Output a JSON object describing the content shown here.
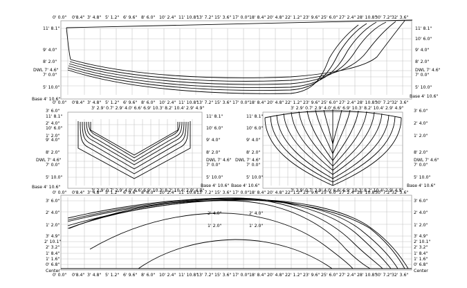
{
  "profile": {
    "top_ticks": [
      "0' 0.0\"",
      "0'8.4\"",
      "3' 4.8\"",
      "5' 1.2\"",
      "6' 9.6\"",
      "8' 6.0\"",
      "10' 2.4\"",
      "11' 10.8\"",
      "13' 7.2\"",
      "15' 3.6\"",
      "17' 0.0\"",
      "18' 8.4\"",
      "20' 4.8\"",
      "22' 1.2\"",
      "23' 9.6\"",
      "25' 6.0\"",
      "27' 2.4\"",
      "28' 10.8\"",
      "30' 7.2\"",
      "32' 3.6\""
    ],
    "bottom_ticks": [
      "0' 0.0\"",
      "0'8.4\"",
      "3' 4.8\"",
      "5' 1.2\"",
      "6' 9.6\"",
      "8' 6.0\"",
      "10' 2.4\"",
      "11' 10.8\"",
      "13' 7.2\"",
      "15' 3.6\"",
      "17' 0.0\"",
      "18' 8.4\"",
      "20' 4.8\"",
      "22' 1.2\"",
      "23' 9.6\"",
      "25' 6.0\"",
      "27' 2.4\"",
      "28' 10.8\"",
      "30' 7.2\"",
      "32' 3.6\""
    ],
    "left_labels": [
      "11' 8.1\"",
      "10' 6.0\"",
      "9' 4.0\"",
      "8' 2.0\"",
      "DWL 7' 4.6\"",
      "7' 0.0\"",
      "5' 10.0\"",
      "Base 4' 10.6\""
    ],
    "right_labels": [
      "11' 8.1\"",
      "10' 6.0\"",
      "9' 4.0\"",
      "8' 2.0\"",
      "DWL 7' 4.6\"",
      "7' 0.0\"",
      "5' 10.0\"",
      "Base 4' 10.6\""
    ]
  },
  "body_aft": {
    "top_ticks": "3' 2.9' 0.7' 2.9' 4.0' 6.6' 6.9' 10.3' 8.2' 10.4' 2.9' 4.9\"",
    "bottom_ticks": "3' 2.9' 0.7' 2.9' 4.0' 6.6' 6.9' 10.3' 8.2' 10.4' 2.9' 4.9\"",
    "left_labels": [
      "3' 6.0\"",
      "11' 8.1\"",
      "2' 4.0\"",
      "10' 6.0\"",
      "1' 2.0\"",
      "9' 4.0\"",
      "8' 2.0\"",
      "DWL 7' 4.6\"",
      "7' 0.0\"",
      "5' 10.0\"",
      "Base 4' 10.6\""
    ],
    "right_labels": [
      "11' 8.1\"",
      "10' 6.0\"",
      "9' 4.0\"",
      "8' 2.0\"",
      "DWL 7' 4.6\"",
      "7' 0.0\"",
      "5' 10.0\"",
      "Base 4' 10.6\""
    ]
  },
  "body_fwd": {
    "top_ticks": "3' 2.9' 0.7' 2.9' 4.0' 6.6' 6.9' 10.3' 8.2' 10.4' 2.9' 4.9\"",
    "bottom_ticks": "3' 2.9' 0.7' 2.9' 4.0' 6.6' 6.9' 10.3' 8.2' 10.4' 2.9' 4.9\"",
    "left_labels": [
      "11' 8.1\"",
      "10' 6.0\"",
      "9' 4.0\"",
      "8' 2.0\"",
      "DWL 7' 4.6\"",
      "7' 0.0\"",
      "5' 10.0\"",
      "Base 4' 10.6\""
    ],
    "right_labels": [
      "3' 6.0\"",
      "2' 4.0\"",
      "1' 2.0\"",
      "8' 2.0\"",
      "DWL 7' 4.6\"",
      "7' 0.0\"",
      "5' 10.0\"",
      "Base 4' 10.6\""
    ]
  },
  "plan": {
    "top_ticks": [
      "0' 0.0\"",
      "0'8.4\"",
      "3' 4.8\"",
      "5' 1.2\"",
      "6' 9.6\"",
      "8' 6.0\"",
      "10' 2.4\"",
      "11' 10.8\"",
      "13' 7.2\"",
      "15' 3.6\"",
      "17' 0.0\"",
      "18' 8.4\"",
      "20' 4.8\"",
      "22' 1.2\"",
      "23' 9.6\"",
      "25' 6.0\"",
      "27' 2.4\"",
      "28' 10.8\"",
      "30' 7.2\"",
      "32' 3.6\""
    ],
    "bottom_ticks": [
      "0' 0.0\"",
      "0'8.4\"",
      "3' 4.8\"",
      "5' 1.2\"",
      "6' 9.6\"",
      "8' 6.0\"",
      "10' 2.4\"",
      "11' 10.8\"",
      "13' 7.2\"",
      "15' 3.6\"",
      "17' 0.0\"",
      "18' 8.4\"",
      "20' 4.8\"",
      "22' 1.2\"",
      "23' 9.6\"",
      "25' 6.0\"",
      "27' 2.4\"",
      "28' 10.8\"",
      "30' 7.2\"",
      "32' 3.6\""
    ],
    "left_labels": [
      "3' 6.0\"",
      "2' 4.0\"",
      "1' 2.0\"",
      "3' 4.9\"",
      "2' 10.1\"",
      "2' 3.2\"",
      "1' 8.4\"",
      "1' 1.6\"",
      "0' 6.8\"",
      "Center"
    ],
    "right_labels": [
      "3' 6.0\"",
      "2' 4.0\"",
      "1' 2.0\"",
      "3' 4.9\"",
      "2' 10.1\"",
      "2' 3.2\"",
      "1' 8.4\"",
      "1' 1.6\"",
      "0' 6.8\"",
      "Center"
    ],
    "inner_labels": [
      "2' 4.0\"",
      "2' 4.0\"",
      "1' 2.0\"",
      "1' 2.0\""
    ]
  }
}
